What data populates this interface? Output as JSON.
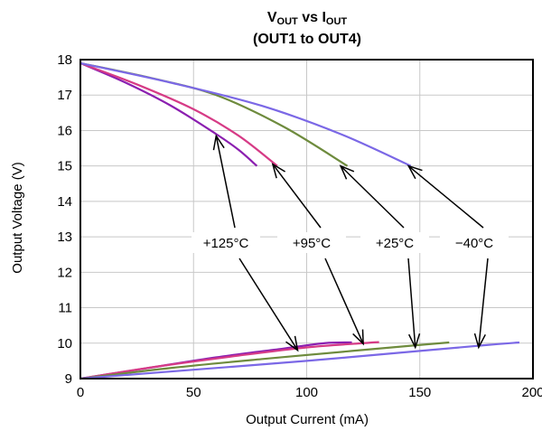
{
  "chart_data": {
    "type": "line",
    "title": {
      "line1": {
        "a": "V",
        "a_sub": "OUT",
        "mid": " vs I",
        "b_sub": "OUT"
      },
      "line2": "(OUT1 to OUT4)"
    },
    "xlabel": "Output Current (mA)",
    "ylabel": "Output Voltage (V)",
    "xlim": [
      0,
      200
    ],
    "ylim": [
      9,
      18
    ],
    "xticks": [
      0,
      50,
      100,
      150,
      200
    ],
    "yticks": [
      9,
      10,
      11,
      12,
      13,
      14,
      15,
      16,
      17,
      18
    ],
    "grid": true,
    "series": [
      {
        "name": "+125°C",
        "color": "#8b1fb0",
        "upper": [
          [
            0,
            17.9
          ],
          [
            20,
            17.35
          ],
          [
            40,
            16.7
          ],
          [
            60,
            15.9
          ],
          [
            70,
            15.45
          ],
          [
            78,
            15.0
          ]
        ],
        "lower": [
          [
            0,
            9.0
          ],
          [
            30,
            9.3
          ],
          [
            60,
            9.6
          ],
          [
            90,
            9.85
          ],
          [
            108,
            10.0
          ],
          [
            120,
            10.02
          ]
        ]
      },
      {
        "name": "+95°C",
        "color": "#d63b86",
        "upper": [
          [
            0,
            17.9
          ],
          [
            25,
            17.3
          ],
          [
            50,
            16.6
          ],
          [
            70,
            15.85
          ],
          [
            87,
            15.0
          ]
        ],
        "lower": [
          [
            0,
            9.0
          ],
          [
            35,
            9.35
          ],
          [
            70,
            9.65
          ],
          [
            100,
            9.88
          ],
          [
            125,
            10.0
          ],
          [
            132,
            10.03
          ]
        ]
      },
      {
        "name": "+25°C",
        "color": "#6e8b3d",
        "upper": [
          [
            0,
            17.9
          ],
          [
            30,
            17.5
          ],
          [
            60,
            17.0
          ],
          [
            90,
            16.1
          ],
          [
            118,
            15.0
          ]
        ],
        "lower": [
          [
            0,
            9.0
          ],
          [
            40,
            9.3
          ],
          [
            80,
            9.55
          ],
          [
            120,
            9.78
          ],
          [
            150,
            9.95
          ],
          [
            163,
            10.02
          ]
        ]
      },
      {
        "name": "−40°C",
        "color": "#7b68e6",
        "upper": [
          [
            0,
            17.9
          ],
          [
            40,
            17.35
          ],
          [
            80,
            16.7
          ],
          [
            115,
            15.9
          ],
          [
            146,
            15.0
          ]
        ],
        "lower": [
          [
            0,
            9.0
          ],
          [
            50,
            9.25
          ],
          [
            100,
            9.5
          ],
          [
            150,
            9.78
          ],
          [
            180,
            9.95
          ],
          [
            194,
            10.02
          ]
        ]
      }
    ],
    "annotations": [
      {
        "label": "+125°C",
        "series": "+125°C"
      },
      {
        "label": "+95°C",
        "series": "+95°C"
      },
      {
        "label": "+25°C",
        "series": "+25°C"
      },
      {
        "label": "−40°C",
        "series": "−40°C"
      }
    ]
  }
}
